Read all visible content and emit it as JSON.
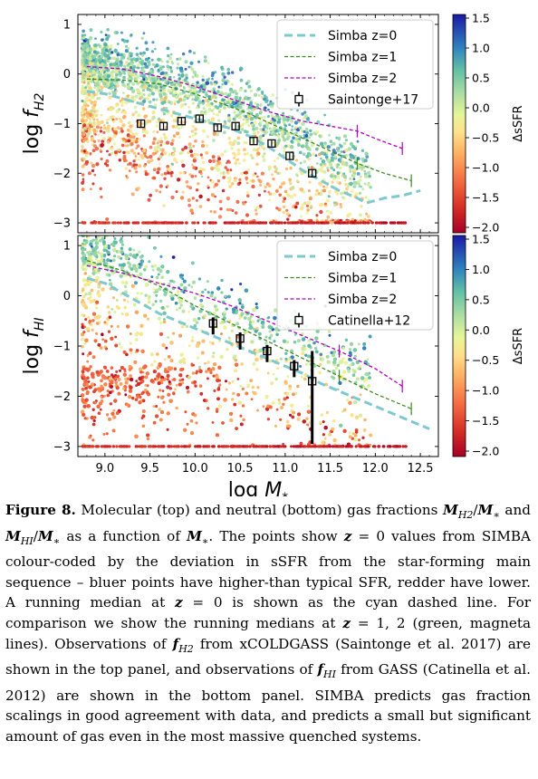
{
  "chart_data": [
    {
      "type": "scatter",
      "panel": "top",
      "ylabel": "log f",
      "ylabel_sub": "H2",
      "xlim": [
        8.7,
        12.7
      ],
      "ylim": [
        -3.2,
        1.2
      ],
      "xticks": [
        "9.0",
        "9.5",
        "10.0",
        "10.5",
        "11.0",
        "11.5",
        "12.0",
        "12.5"
      ],
      "yticks": [
        "1",
        "0",
        "−1",
        "−2",
        "−3"
      ],
      "legend_position": "upper-right",
      "series": [
        {
          "name": "Simba z=0",
          "style": "cyan-dashed",
          "x": [
            8.8,
            9.0,
            9.2,
            9.4,
            9.6,
            9.8,
            10.0,
            10.2,
            10.4,
            10.6,
            10.8,
            11.0,
            11.2,
            11.4,
            11.6,
            11.8,
            11.9,
            12.1,
            12.3,
            12.5
          ],
          "y": [
            -0.35,
            -0.4,
            -0.5,
            -0.6,
            -0.7,
            -0.8,
            -0.9,
            -1.0,
            -1.1,
            -1.25,
            -1.45,
            -1.7,
            -1.95,
            -2.15,
            -2.35,
            -2.5,
            -2.6,
            -2.5,
            -2.45,
            -2.35
          ]
        },
        {
          "name": "Simba z=1",
          "style": "green-dashed",
          "x": [
            8.8,
            9.2,
            9.6,
            10.0,
            10.3,
            10.6,
            10.9,
            11.2,
            11.5,
            11.8,
            12.1,
            12.4
          ],
          "y": [
            -0.1,
            -0.12,
            -0.2,
            -0.4,
            -0.6,
            -0.8,
            -1.05,
            -1.3,
            -1.55,
            -1.8,
            -2.0,
            -2.15
          ]
        },
        {
          "name": "Simba z=2",
          "style": "magenta-dashed",
          "x": [
            8.8,
            9.2,
            9.6,
            10.0,
            10.4,
            10.8,
            11.2,
            11.5,
            11.8,
            12.0,
            12.3
          ],
          "y": [
            0.15,
            0.1,
            -0.05,
            -0.25,
            -0.5,
            -0.75,
            -0.95,
            -1.05,
            -1.15,
            -1.3,
            -1.5
          ]
        },
        {
          "name": "Saintonge+17",
          "style": "black-square",
          "x": [
            9.4,
            9.65,
            9.85,
            10.05,
            10.25,
            10.45,
            10.65,
            10.85,
            11.05,
            11.3
          ],
          "y": [
            -1.0,
            -1.05,
            -0.95,
            -0.9,
            -1.08,
            -1.05,
            -1.35,
            -1.4,
            -1.65,
            -2.0
          ]
        }
      ]
    },
    {
      "type": "scatter",
      "panel": "bottom",
      "ylabel": "log f",
      "ylabel_sub": "HI",
      "xlabel": "log M",
      "xlabel_sub": "*",
      "xlim": [
        8.7,
        12.7
      ],
      "ylim": [
        -3.2,
        1.2
      ],
      "xticks": [
        "9.0",
        "9.5",
        "10.0",
        "10.5",
        "11.0",
        "11.5",
        "12.0",
        "12.5"
      ],
      "yticks": [
        "1",
        "0",
        "−1",
        "−2",
        "−3"
      ],
      "legend_position": "upper-right",
      "series": [
        {
          "name": "Simba z=0",
          "style": "cyan-dashed",
          "x": [
            8.8,
            9.0,
            9.2,
            9.4,
            9.6,
            9.8,
            10.0,
            10.2,
            10.4,
            10.6,
            10.8,
            11.0,
            11.2,
            11.4,
            11.6,
            11.8,
            12.0,
            12.2,
            12.4,
            12.6
          ],
          "y": [
            0.35,
            0.25,
            0.05,
            -0.15,
            -0.35,
            -0.5,
            -0.65,
            -0.8,
            -0.95,
            -1.1,
            -1.25,
            -1.4,
            -1.55,
            -1.75,
            -1.9,
            -2.05,
            -2.2,
            -2.35,
            -2.5,
            -2.65
          ]
        },
        {
          "name": "Simba z=1",
          "style": "green-dashed",
          "x": [
            8.8,
            9.2,
            9.6,
            10.0,
            10.4,
            10.8,
            11.2,
            11.6,
            12.0,
            12.4
          ],
          "y": [
            0.7,
            0.5,
            0.2,
            -0.2,
            -0.55,
            -0.9,
            -1.25,
            -1.6,
            -1.95,
            -2.25
          ]
        },
        {
          "name": "Simba z=2",
          "style": "magenta-dashed",
          "x": [
            8.8,
            9.2,
            9.6,
            10.0,
            10.4,
            10.8,
            11.2,
            11.6,
            12.0,
            12.3
          ],
          "y": [
            0.6,
            0.45,
            0.25,
            0.05,
            -0.2,
            -0.5,
            -0.8,
            -1.1,
            -1.45,
            -1.8
          ]
        },
        {
          "name": "Catinella+12",
          "style": "black-square",
          "x": [
            10.2,
            10.5,
            10.8,
            11.1,
            11.3
          ],
          "y": [
            -0.55,
            -0.85,
            -1.1,
            -1.4,
            -1.7
          ]
        }
      ]
    }
  ],
  "colorbar": {
    "label": "ΔsSFR",
    "top_ticks": [
      "1.5",
      "1.0",
      "0.5",
      "0.0",
      "−0.5",
      "−1.0",
      "−1.5",
      "−2.0"
    ],
    "bottom_ticks": [
      "1.5",
      "1.0",
      "0.5",
      "0.0",
      "−0.5",
      "−1.0",
      "−1.5",
      "−2.0"
    ]
  },
  "caption": {
    "label": "Figure 8.",
    "parts": [
      {
        "t": " Molecular (top) and neutral (bottom) gas fractions "
      },
      {
        "m": "M"
      },
      {
        "sub": "H2"
      },
      {
        "t": "/"
      },
      {
        "m": "M"
      },
      {
        "sub": "∗"
      },
      {
        "t": " and "
      },
      {
        "m": "M"
      },
      {
        "sub": "HI"
      },
      {
        "t": "/"
      },
      {
        "m": "M"
      },
      {
        "sub": "∗"
      },
      {
        "t": " as a function of "
      },
      {
        "m": "M"
      },
      {
        "sub": "∗"
      },
      {
        "t": ". The points show "
      },
      {
        "m": "z"
      },
      {
        "t": " = 0 values from Simba colour-coded by the deviation in sSFR from the star-forming main sequence – bluer points have higher-than typical SFR, redder have lower. A running median at "
      },
      {
        "m": "z"
      },
      {
        "t": " = 0 is shown as the cyan dashed line. For comparison we show the running medians at "
      },
      {
        "m": "z"
      },
      {
        "t": " = 1, 2 (green, magneta lines). Observations of "
      },
      {
        "m": "f"
      },
      {
        "sub": "H2"
      },
      {
        "t": " from xCOLDGASS (Saintonge et al. 2017) are shown in the top panel, and observations of "
      },
      {
        "m": "f"
      },
      {
        "sub": "HI"
      },
      {
        "t": " from GASS (Catinella et al. 2012) are shown in the bottom panel. Simba predicts gas fraction scalings in good agreement with data, and predicts a small but significant amount of gas even in the most massive quenched systems."
      }
    ]
  }
}
